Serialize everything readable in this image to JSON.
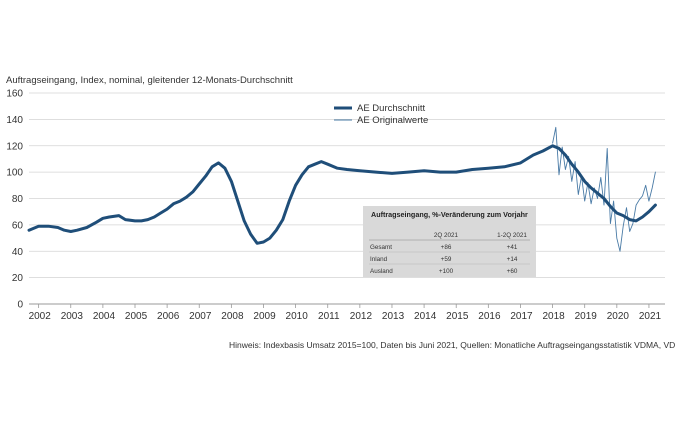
{
  "chart_data": {
    "type": "line",
    "title": "Auftragseingang, Index, nominal, gleitender 12-Monats-Durchschnitt",
    "xlabel": "",
    "ylabel": "",
    "ylim": [
      0,
      160
    ],
    "yticks": [
      0,
      20,
      40,
      60,
      80,
      100,
      120,
      140,
      160
    ],
    "xlim": [
      2001.7,
      2021.5
    ],
    "x_tick_labels": [
      "2002",
      "2003",
      "2004",
      "2005",
      "2006",
      "2007",
      "2008",
      "2009",
      "2010",
      "2011",
      "2012",
      "2013",
      "2014",
      "2015",
      "2016",
      "2017",
      "2018",
      "2019",
      "2020",
      "2021"
    ],
    "legend_position": "top-center",
    "series": [
      {
        "name": "AE Durchschnitt",
        "color": "#1f4e79",
        "style": "thick",
        "x": [
          2001.7,
          2002.0,
          2002.3,
          2002.6,
          2002.8,
          2003.0,
          2003.2,
          2003.5,
          2003.8,
          2004.0,
          2004.2,
          2004.5,
          2004.7,
          2005.0,
          2005.2,
          2005.4,
          2005.6,
          2005.8,
          2006.0,
          2006.2,
          2006.4,
          2006.6,
          2006.8,
          2007.0,
          2007.2,
          2007.4,
          2007.6,
          2007.8,
          2008.0,
          2008.2,
          2008.4,
          2008.6,
          2008.8,
          2009.0,
          2009.2,
          2009.4,
          2009.6,
          2009.8,
          2010.0,
          2010.2,
          2010.4,
          2010.6,
          2010.8,
          2011.0,
          2011.3,
          2011.6,
          2012.0,
          2012.5,
          2013.0,
          2013.5,
          2014.0,
          2014.5,
          2015.0,
          2015.5,
          2016.0,
          2016.5,
          2017.0,
          2017.4,
          2017.7,
          2018.0,
          2018.2,
          2018.4,
          2018.6,
          2018.8,
          2019.0,
          2019.2,
          2019.4,
          2019.6,
          2019.8,
          2020.0,
          2020.2,
          2020.4,
          2020.6,
          2020.8,
          2021.0,
          2021.2
        ],
        "values": [
          56,
          59,
          59,
          58,
          56,
          55,
          56,
          58,
          62,
          65,
          66,
          67,
          64,
          63,
          63,
          64,
          66,
          69,
          72,
          76,
          78,
          81,
          85,
          91,
          97,
          104,
          107,
          103,
          93,
          78,
          63,
          53,
          46,
          47,
          50,
          56,
          64,
          78,
          90,
          98,
          104,
          106,
          108,
          106,
          103,
          102,
          101,
          100,
          99,
          100,
          101,
          100,
          100,
          102,
          103,
          104,
          107,
          113,
          116,
          120,
          118,
          113,
          106,
          100,
          93,
          88,
          84,
          80,
          74,
          69,
          67,
          64,
          63,
          66,
          70,
          75
        ]
      },
      {
        "name": "AE Originalwerte",
        "color": "#4a7ba6",
        "style": "thin",
        "x": [
          2018.0,
          2018.1,
          2018.2,
          2018.3,
          2018.4,
          2018.5,
          2018.6,
          2018.7,
          2018.8,
          2018.9,
          2019.0,
          2019.1,
          2019.2,
          2019.3,
          2019.4,
          2019.5,
          2019.6,
          2019.7,
          2019.8,
          2019.9,
          2020.0,
          2020.1,
          2020.2,
          2020.3,
          2020.4,
          2020.5,
          2020.6,
          2020.7,
          2020.8,
          2020.9,
          2021.0,
          2021.1,
          2021.2
        ],
        "values": [
          122,
          134,
          98,
          119,
          102,
          112,
          93,
          108,
          83,
          97,
          78,
          92,
          76,
          88,
          80,
          96,
          75,
          118,
          61,
          78,
          50,
          40,
          59,
          73,
          55,
          61,
          75,
          79,
          82,
          90,
          78,
          88,
          100
        ]
      }
    ],
    "table": {
      "title": "Auftragseingang, %-Veränderung zum Vorjahr",
      "columns": [
        "",
        "2Q 2021",
        "1-2Q 2021"
      ],
      "rows": [
        {
          "label": "Gesamt",
          "c1": "+86",
          "c2": "+41"
        },
        {
          "label": "Inland",
          "c1": "+59",
          "c2": "+14"
        },
        {
          "label": "Ausland",
          "c1": "+100",
          "c2": "+60"
        }
      ]
    },
    "footnote": "Hinweis: Indexbasis Umsatz 2015=100, Daten bis Juni 2021, Quellen: Monatliche Auftragseingangsstatistik VDMA, VDW"
  }
}
